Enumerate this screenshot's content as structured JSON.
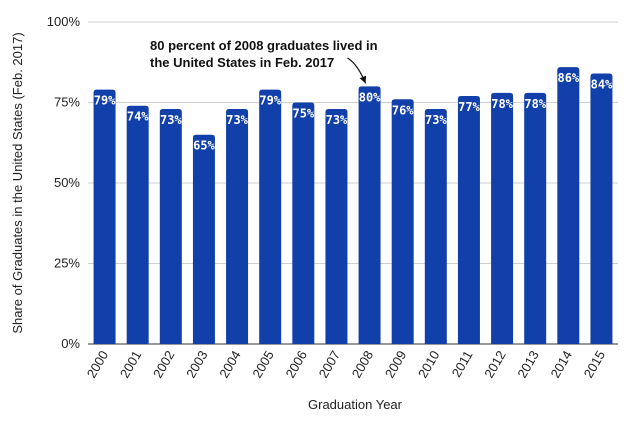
{
  "chart_data": {
    "type": "bar",
    "categories": [
      "2000",
      "2001",
      "2002",
      "2003",
      "2004",
      "2005",
      "2006",
      "2007",
      "2008",
      "2009",
      "2010",
      "2011",
      "2012",
      "2013",
      "2014",
      "2015"
    ],
    "values": [
      79,
      74,
      73,
      65,
      73,
      79,
      75,
      73,
      80,
      76,
      73,
      77,
      78,
      78,
      86,
      84
    ],
    "data_labels": [
      "79%",
      "74%",
      "73%",
      "65%",
      "73%",
      "79%",
      "75%",
      "73%",
      "80%",
      "76%",
      "73%",
      "77%",
      "78%",
      "78%",
      "86%",
      "84%"
    ],
    "xlabel": "Graduation Year",
    "ylabel": "Share of Graduates in the United States (Feb. 2017)",
    "ylim": [
      0,
      100
    ],
    "yticks": [
      "0%",
      "25%",
      "50%",
      "75%",
      "100%"
    ],
    "ytick_values": [
      0,
      25,
      50,
      75,
      100
    ],
    "grid": true,
    "bar_color": "#1240ab",
    "annotation": {
      "lines": [
        "80 percent of 2008 graduates lived in",
        "the United States in Feb. 2017"
      ],
      "target_category": "2008"
    }
  }
}
